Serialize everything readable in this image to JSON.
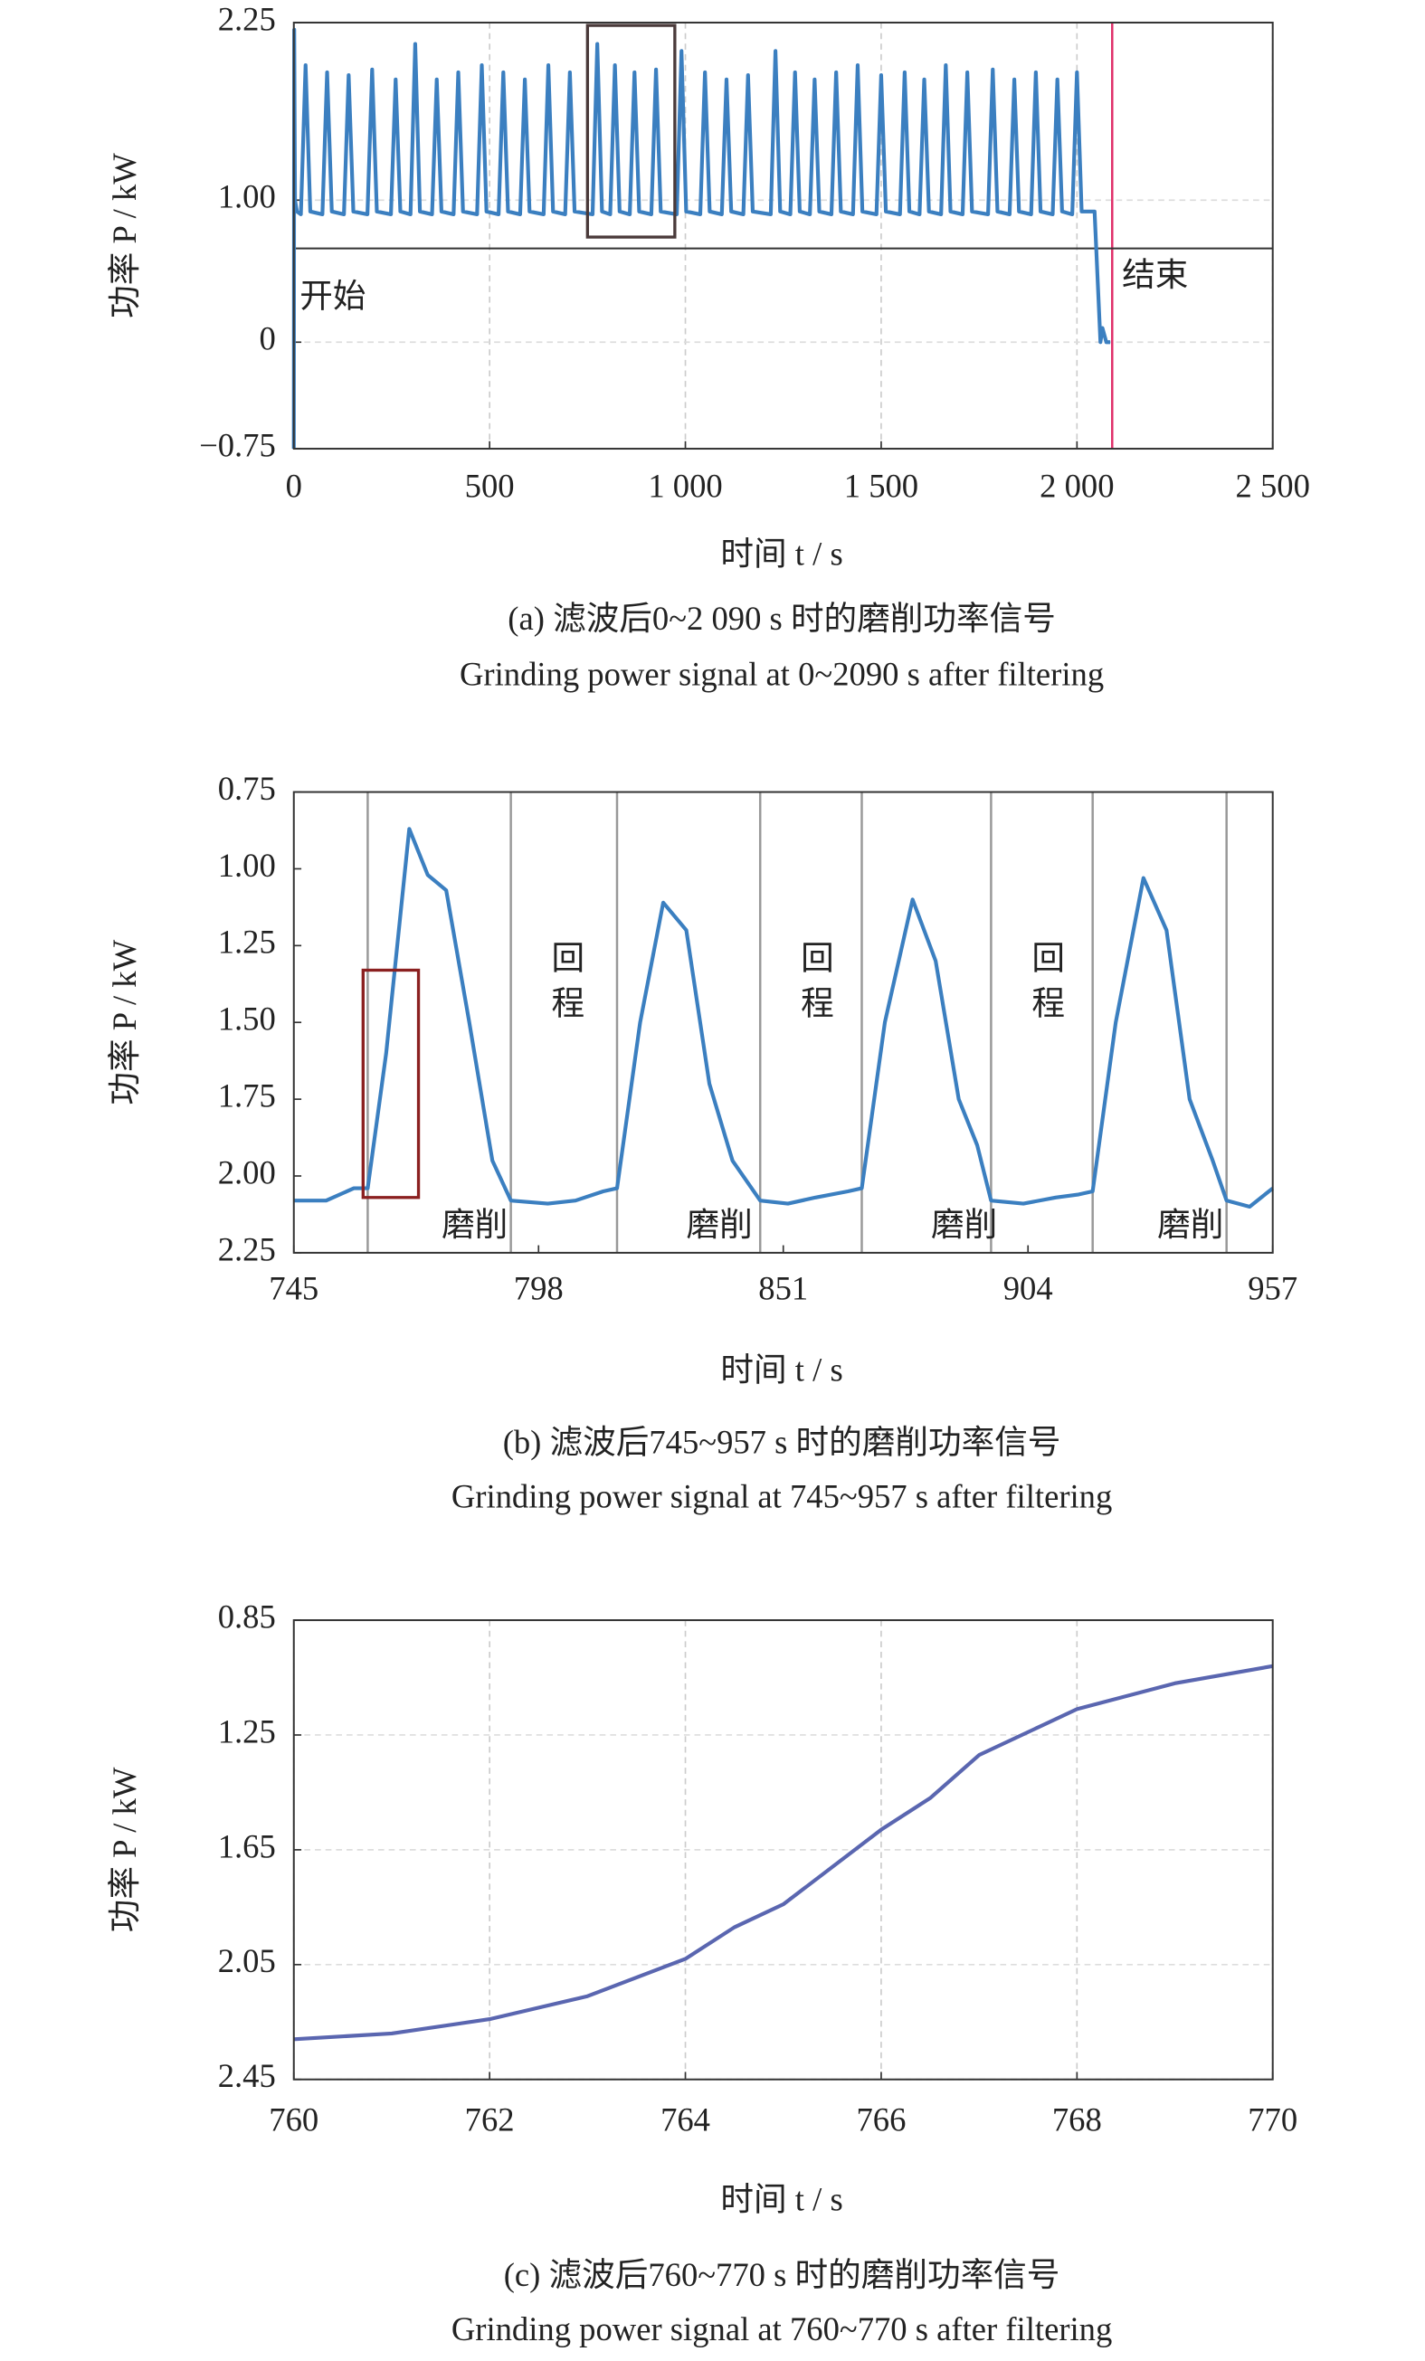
{
  "chart_data": [
    {
      "type": "line",
      "title": "(a) 滤波后0~2 090 s 时的磨削功率信号",
      "subtitle": "Grinding power signal at 0~2090 s after filtering",
      "x_label": "时间 t / s",
      "y_label": "功率 P / kW",
      "color": "#3b7fc0",
      "grid": true,
      "xlim": [
        0,
        2500
      ],
      "ylim": [
        -0.75,
        2.25
      ],
      "xticks": [
        0,
        500,
        {
          "value": 1000,
          "label": "1 000"
        },
        {
          "value": 1500,
          "label": "1 500"
        },
        {
          "value": 2000,
          "label": "2 000"
        },
        {
          "value": 2500,
          "label": "2 500"
        }
      ],
      "yticks": [
        {
          "value": -0.75,
          "label": "−0.75"
        },
        0,
        {
          "value": 1,
          "label": "1.00"
        },
        2.25
      ],
      "x": [
        0,
        1,
        3,
        8,
        18,
        30,
        42,
        73,
        85,
        97,
        128,
        140,
        152,
        188,
        200,
        212,
        248,
        260,
        272,
        298,
        310,
        322,
        353,
        365,
        377,
        408,
        420,
        432,
        468,
        480,
        492,
        523,
        535,
        547,
        578,
        590,
        602,
        638,
        650,
        662,
        693,
        705,
        717,
        763,
        775,
        787,
        808,
        820,
        832,
        858,
        870,
        882,
        913,
        925,
        937,
        978,
        990,
        1002,
        1038,
        1050,
        1062,
        1093,
        1105,
        1117,
        1148,
        1160,
        1172,
        1218,
        1230,
        1242,
        1268,
        1280,
        1292,
        1318,
        1330,
        1342,
        1373,
        1385,
        1397,
        1428,
        1440,
        1452,
        1488,
        1500,
        1512,
        1548,
        1560,
        1572,
        1598,
        1610,
        1622,
        1653,
        1665,
        1677,
        1708,
        1720,
        1732,
        1773,
        1785,
        1797,
        1828,
        1840,
        1852,
        1883,
        1895,
        1907,
        1938,
        1950,
        1962,
        1988,
        2000,
        2012,
        2040,
        2045,
        2060,
        2065,
        2075,
        2085
      ],
      "values": [
        -0.75,
        2.2,
        1.0,
        0.92,
        0.9,
        1.95,
        0.92,
        0.9,
        1.9,
        0.92,
        0.9,
        1.88,
        0.92,
        0.9,
        1.92,
        0.92,
        0.9,
        1.85,
        0.92,
        0.9,
        2.1,
        0.92,
        0.9,
        1.85,
        0.92,
        0.9,
        1.9,
        0.92,
        0.9,
        1.95,
        0.92,
        0.9,
        1.9,
        0.92,
        0.9,
        1.85,
        0.92,
        0.9,
        1.95,
        0.92,
        0.9,
        1.9,
        0.92,
        0.9,
        2.1,
        0.92,
        0.9,
        1.95,
        0.92,
        0.9,
        1.9,
        0.92,
        0.9,
        1.92,
        0.92,
        0.9,
        2.05,
        0.92,
        0.9,
        1.9,
        0.92,
        0.9,
        1.85,
        0.92,
        0.9,
        1.88,
        0.92,
        0.9,
        2.05,
        0.92,
        0.9,
        1.9,
        0.92,
        0.9,
        1.85,
        0.92,
        0.9,
        1.9,
        0.92,
        0.9,
        1.95,
        0.92,
        0.9,
        1.88,
        0.92,
        0.9,
        1.9,
        0.92,
        0.9,
        1.85,
        0.92,
        0.9,
        1.95,
        0.92,
        0.9,
        1.9,
        0.92,
        0.9,
        1.92,
        0.92,
        0.9,
        1.85,
        0.92,
        0.9,
        1.9,
        0.92,
        0.9,
        1.85,
        0.92,
        0.9,
        1.9,
        0.92,
        0.92,
        0.92,
        0,
        0.1,
        0,
        0
      ],
      "vlines": [
        {
          "x": 2090,
          "color": "#e0306a"
        }
      ],
      "hlines": [
        {
          "y": 0.66,
          "color": "#333333"
        }
      ],
      "boxes": [
        {
          "x": [
            750,
            973
          ],
          "y": [
            0.74,
            2.23
          ],
          "color": "#4a3a3a"
        }
      ],
      "annotations": [
        {
          "text": "开始",
          "x": 15,
          "y": 0.3,
          "color": "#4a6fb0"
        },
        {
          "text": "结束",
          "x": 2115,
          "y": 0.45,
          "color": "#c0305a"
        }
      ]
    },
    {
      "type": "line",
      "title": "(b) 滤波后745~957 s 时的磨削功率信号",
      "subtitle": "Grinding power signal at 745~957 s after filtering",
      "x_label": "时间 t / s",
      "y_label": "功率 P / kW",
      "color": "#3b7fc0",
      "grid": false,
      "xlim": [
        745,
        957
      ],
      "ylim": [
        2.25,
        0.75
      ],
      "xticks": [
        745,
        798,
        851,
        904,
        957
      ],
      "yticks": [
        0.75,
        {
          "value": 1,
          "label": "1.00"
        },
        1.25,
        {
          "value": 1.5,
          "label": "1.50"
        },
        1.75,
        {
          "value": 2,
          "label": "2.00"
        },
        2.25
      ],
      "x": [
        745,
        752,
        758,
        761,
        765,
        770,
        774,
        778,
        783,
        788,
        792,
        800,
        806,
        812,
        815,
        820,
        825,
        830,
        835,
        840,
        846,
        852,
        858,
        865,
        868,
        873,
        879,
        884,
        889,
        893,
        896,
        903,
        910,
        915,
        918,
        923,
        929,
        934,
        939,
        944,
        947,
        952,
        957
      ],
      "values": [
        2.08,
        2.08,
        2.04,
        2.04,
        1.6,
        0.87,
        1.02,
        1.07,
        1.5,
        1.95,
        2.08,
        2.09,
        2.08,
        2.05,
        2.04,
        1.5,
        1.11,
        1.2,
        1.7,
        1.95,
        2.08,
        2.09,
        2.07,
        2.05,
        2.04,
        1.5,
        1.1,
        1.3,
        1.75,
        1.9,
        2.08,
        2.09,
        2.07,
        2.06,
        2.05,
        1.5,
        1.03,
        1.2,
        1.75,
        1.95,
        2.08,
        2.1,
        2.04
      ],
      "vlines": [
        {
          "x": 761,
          "color": "#999999"
        },
        {
          "x": 792,
          "color": "#999999"
        },
        {
          "x": 815,
          "color": "#999999"
        },
        {
          "x": 846,
          "color": "#999999"
        },
        {
          "x": 868,
          "color": "#999999"
        },
        {
          "x": 896,
          "color": "#999999"
        },
        {
          "x": 918,
          "color": "#999999"
        },
        {
          "x": 947,
          "color": "#999999"
        }
      ],
      "hlines": [],
      "boxes": [
        {
          "x": [
            760,
            772
          ],
          "y": [
            1.33,
            2.07
          ],
          "color": "#8b2020"
        }
      ],
      "annotations": [
        {
          "text": "回程",
          "x": 803,
          "y": 1.38,
          "color": "#5a5aa0",
          "orientation": "vertical"
        },
        {
          "text": "回程",
          "x": 857,
          "y": 1.38,
          "color": "#5a5aa0",
          "orientation": "vertical"
        },
        {
          "text": "回程",
          "x": 907,
          "y": 1.38,
          "color": "#5a5aa0",
          "orientation": "vertical"
        },
        {
          "text": "磨削",
          "x": 777,
          "y": 2.17,
          "color": "#4a7fc0"
        },
        {
          "text": "磨削",
          "x": 830,
          "y": 2.17,
          "color": "#4a7fc0"
        },
        {
          "text": "磨削",
          "x": 883,
          "y": 2.17,
          "color": "#4a7fc0"
        },
        {
          "text": "磨削",
          "x": 932,
          "y": 2.17,
          "color": "#4a7fc0"
        }
      ]
    },
    {
      "type": "line",
      "title": "(c) 滤波后760~770 s 时的磨削功率信号",
      "subtitle": "Grinding power signal at 760~770 s after filtering",
      "x_label": "时间 t / s",
      "y_label": "功率 P / kW",
      "color": "#5a66b0",
      "grid": true,
      "xlim": [
        760,
        770
      ],
      "ylim": [
        2.45,
        0.85
      ],
      "xticks": [
        760,
        762,
        764,
        766,
        768,
        770
      ],
      "yticks": [
        0.85,
        1.25,
        1.65,
        2.05,
        2.45
      ],
      "x": [
        760,
        761,
        762,
        763,
        764,
        764.5,
        765,
        766,
        766.5,
        767,
        768,
        769,
        770
      ],
      "values": [
        2.31,
        2.29,
        2.24,
        2.16,
        2.03,
        1.92,
        1.84,
        1.58,
        1.47,
        1.32,
        1.16,
        1.07,
        1.01
      ],
      "vlines": [],
      "hlines": [],
      "boxes": [],
      "annotations": []
    }
  ]
}
